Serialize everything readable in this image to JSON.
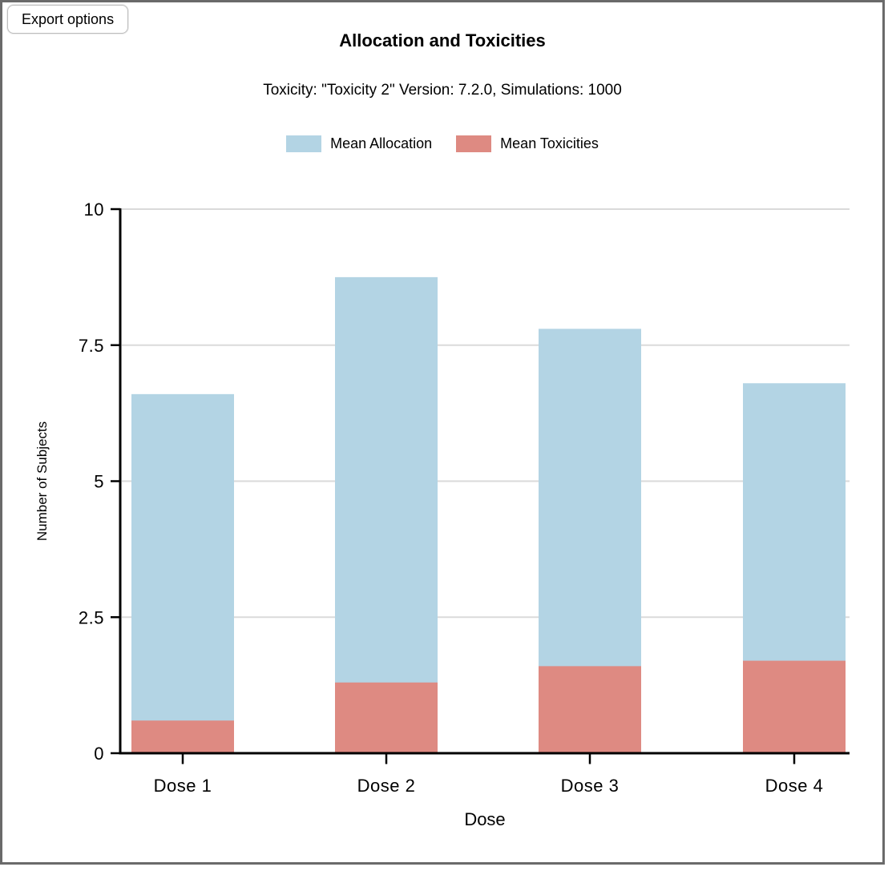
{
  "toolbar": {
    "export_button_label": "Export options"
  },
  "chart_data": {
    "type": "bar",
    "mode": "overlay",
    "title": "Allocation and Toxicities",
    "subtitle": "Toxicity: \"Toxicity 2\" Version: 7.2.0, Simulations: 1000",
    "categories": [
      "Dose 1",
      "Dose 2",
      "Dose 3",
      "Dose 4"
    ],
    "series": [
      {
        "name": "Mean Allocation",
        "color": "#b3d4e4",
        "values": [
          6.6,
          8.75,
          7.8,
          6.8
        ]
      },
      {
        "name": "Mean Toxicities",
        "color": "#de8a82",
        "values": [
          0.6,
          1.3,
          1.6,
          1.7
        ]
      }
    ],
    "xlabel": "Dose",
    "ylabel": "Number of Subjects",
    "ylim": [
      0,
      10
    ],
    "yticks": [
      0,
      2.5,
      5,
      7.5,
      10
    ],
    "grid": true,
    "gridline_color": "#dadada",
    "axis_color": "#000000",
    "legend_position": "top"
  }
}
